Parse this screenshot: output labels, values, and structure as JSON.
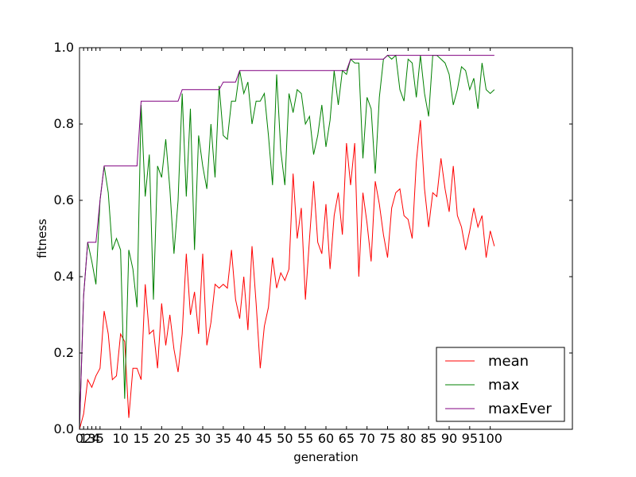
{
  "chart_data": {
    "type": "line",
    "title": "",
    "xlabel": "generation",
    "ylabel": "fitness",
    "xlim": [
      0,
      120
    ],
    "ylim": [
      0.0,
      1.0
    ],
    "x_ticks": [
      0,
      1,
      2,
      3,
      4,
      5,
      10,
      15,
      20,
      25,
      30,
      35,
      40,
      45,
      50,
      55,
      60,
      65,
      70,
      75,
      80,
      85,
      90,
      95,
      100
    ],
    "x_tick_labels": [
      "0",
      "1",
      "2",
      "3",
      "4",
      "5",
      "10",
      "15",
      "20",
      "25",
      "30",
      "35",
      "40",
      "45",
      "50",
      "55",
      "60",
      "65",
      "70",
      "75",
      "80",
      "85",
      "90",
      "95",
      "100"
    ],
    "y_ticks": [
      0.0,
      0.2,
      0.4,
      0.6,
      0.8,
      1.0
    ],
    "y_tick_labels": [
      "0.0",
      "0.2",
      "0.4",
      "0.6",
      "0.8",
      "1.0"
    ],
    "grid": false,
    "legend_position": "lower-right",
    "x": [
      0,
      1,
      2,
      3,
      4,
      5,
      6,
      7,
      8,
      9,
      10,
      11,
      12,
      13,
      14,
      15,
      16,
      17,
      18,
      19,
      20,
      21,
      22,
      23,
      24,
      25,
      26,
      27,
      28,
      29,
      30,
      31,
      32,
      33,
      34,
      35,
      36,
      37,
      38,
      39,
      40,
      41,
      42,
      43,
      44,
      45,
      46,
      47,
      48,
      49,
      50,
      51,
      52,
      53,
      54,
      55,
      56,
      57,
      58,
      59,
      60,
      61,
      62,
      63,
      64,
      65,
      66,
      67,
      68,
      69,
      70,
      71,
      72,
      73,
      74,
      75,
      76,
      77,
      78,
      79,
      80,
      81,
      82,
      83,
      84,
      85,
      86,
      87,
      88,
      89,
      90,
      91,
      92,
      93,
      94,
      95,
      96,
      97,
      98,
      99,
      100,
      101
    ],
    "series": [
      {
        "name": "mean",
        "color": "#ff0000",
        "values": [
          0.0,
          0.04,
          0.13,
          0.11,
          0.14,
          0.16,
          0.31,
          0.25,
          0.13,
          0.14,
          0.25,
          0.23,
          0.03,
          0.16,
          0.16,
          0.13,
          0.38,
          0.25,
          0.26,
          0.16,
          0.33,
          0.22,
          0.3,
          0.21,
          0.15,
          0.25,
          0.46,
          0.3,
          0.36,
          0.25,
          0.46,
          0.22,
          0.28,
          0.38,
          0.37,
          0.38,
          0.37,
          0.47,
          0.34,
          0.29,
          0.4,
          0.26,
          0.48,
          0.33,
          0.16,
          0.27,
          0.32,
          0.45,
          0.37,
          0.41,
          0.39,
          0.42,
          0.67,
          0.5,
          0.58,
          0.34,
          0.5,
          0.65,
          0.49,
          0.46,
          0.59,
          0.42,
          0.56,
          0.62,
          0.51,
          0.75,
          0.64,
          0.75,
          0.4,
          0.62,
          0.54,
          0.44,
          0.65,
          0.59,
          0.51,
          0.45,
          0.58,
          0.62,
          0.63,
          0.56,
          0.55,
          0.5,
          0.7,
          0.81,
          0.63,
          0.53,
          0.62,
          0.61,
          0.71,
          0.63,
          0.57,
          0.69,
          0.56,
          0.53,
          0.47,
          0.52,
          0.58,
          0.53,
          0.56,
          0.45,
          0.52,
          0.48
        ]
      },
      {
        "name": "max",
        "color": "#008000",
        "values": [
          0.0,
          0.35,
          0.49,
          0.44,
          0.38,
          0.6,
          0.69,
          0.62,
          0.47,
          0.5,
          0.47,
          0.08,
          0.47,
          0.42,
          0.32,
          0.85,
          0.61,
          0.72,
          0.34,
          0.69,
          0.66,
          0.76,
          0.63,
          0.46,
          0.6,
          0.88,
          0.61,
          0.84,
          0.47,
          0.77,
          0.69,
          0.63,
          0.8,
          0.66,
          0.9,
          0.77,
          0.76,
          0.86,
          0.86,
          0.94,
          0.88,
          0.91,
          0.8,
          0.86,
          0.86,
          0.88,
          0.77,
          0.64,
          0.93,
          0.73,
          0.64,
          0.88,
          0.83,
          0.89,
          0.88,
          0.8,
          0.82,
          0.72,
          0.77,
          0.85,
          0.74,
          0.81,
          0.94,
          0.85,
          0.94,
          0.93,
          0.97,
          0.96,
          0.96,
          0.71,
          0.87,
          0.84,
          0.67,
          0.87,
          0.97,
          0.98,
          0.97,
          0.98,
          0.89,
          0.86,
          0.97,
          0.96,
          0.87,
          0.98,
          0.88,
          0.82,
          0.98,
          0.98,
          0.97,
          0.96,
          0.93,
          0.85,
          0.89,
          0.95,
          0.94,
          0.89,
          0.92,
          0.84,
          0.96,
          0.89,
          0.88,
          0.89
        ]
      },
      {
        "name": "maxEver",
        "color": "#800080",
        "values": [
          0.0,
          0.35,
          0.49,
          0.49,
          0.49,
          0.6,
          0.69,
          0.69,
          0.69,
          0.69,
          0.69,
          0.69,
          0.69,
          0.69,
          0.69,
          0.86,
          0.86,
          0.86,
          0.86,
          0.86,
          0.86,
          0.86,
          0.86,
          0.86,
          0.86,
          0.89,
          0.89,
          0.89,
          0.89,
          0.89,
          0.89,
          0.89,
          0.89,
          0.89,
          0.89,
          0.91,
          0.91,
          0.91,
          0.91,
          0.94,
          0.94,
          0.94,
          0.94,
          0.94,
          0.94,
          0.94,
          0.94,
          0.94,
          0.94,
          0.94,
          0.94,
          0.94,
          0.94,
          0.94,
          0.94,
          0.94,
          0.94,
          0.94,
          0.94,
          0.94,
          0.94,
          0.94,
          0.94,
          0.94,
          0.94,
          0.94,
          0.97,
          0.97,
          0.97,
          0.97,
          0.97,
          0.97,
          0.97,
          0.97,
          0.97,
          0.98,
          0.98,
          0.98,
          0.98,
          0.98,
          0.98,
          0.98,
          0.98,
          0.98,
          0.98,
          0.98,
          0.98,
          0.98,
          0.98,
          0.98,
          0.98,
          0.98,
          0.98,
          0.98,
          0.98,
          0.98,
          0.98,
          0.98,
          0.98,
          0.98,
          0.98,
          0.98
        ]
      }
    ]
  }
}
